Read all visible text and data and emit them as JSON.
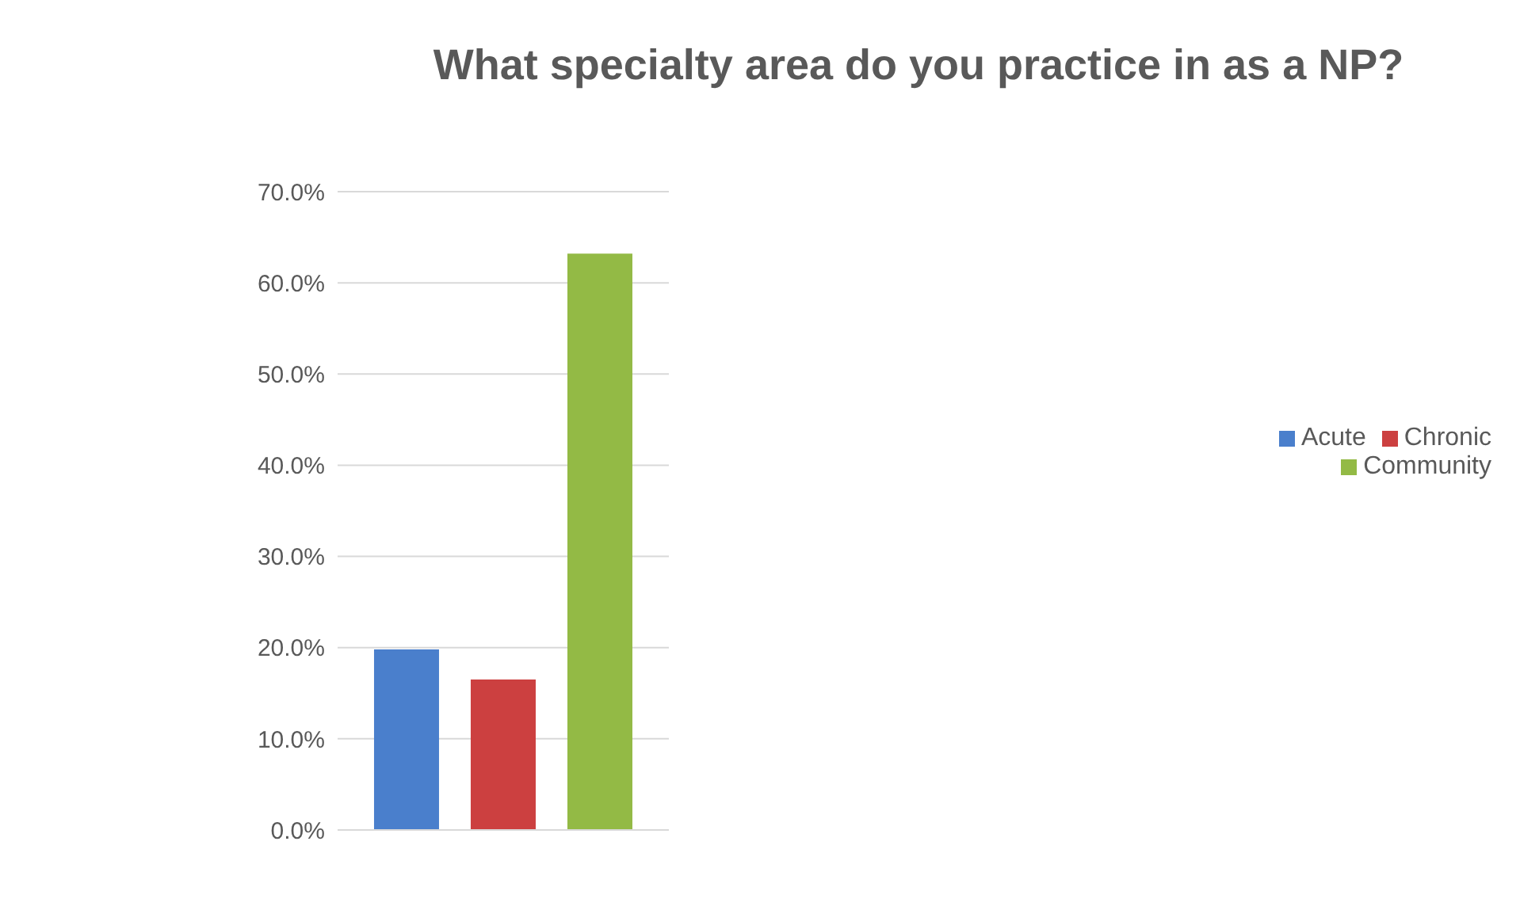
{
  "chart_data": {
    "type": "bar",
    "title": "What specialty area do you practice in as a NP?",
    "categories": [
      null
    ],
    "series": [
      {
        "name": "Acute",
        "color": "#4a7fcc",
        "values": [
          19.8
        ]
      },
      {
        "name": "Chronic",
        "color": "#cc4040",
        "values": [
          16.5
        ]
      },
      {
        "name": "Community",
        "color": "#93ba45",
        "values": [
          63.2
        ]
      }
    ],
    "ylim": [
      0,
      70
    ],
    "yticks": [
      {
        "value": 0,
        "label": "0.0%"
      },
      {
        "value": 10,
        "label": "10.0%"
      },
      {
        "value": 20,
        "label": "20.0%"
      },
      {
        "value": 30,
        "label": "30.0%"
      },
      {
        "value": 40,
        "label": "40.0%"
      },
      {
        "value": 50,
        "label": "50.0%"
      },
      {
        "value": 60,
        "label": "60.0%"
      },
      {
        "value": 70,
        "label": "70.0%"
      }
    ],
    "grid": "y",
    "legend": "right"
  }
}
